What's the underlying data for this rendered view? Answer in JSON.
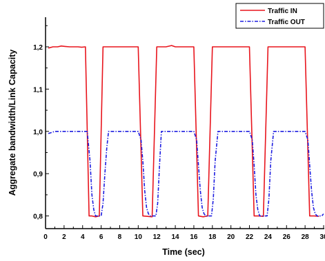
{
  "chart_data": {
    "type": "line",
    "title": "",
    "xlabel": "Time (sec)",
    "ylabel": "Aggregate bandwidth/Link Capacity",
    "xlim": [
      0,
      30
    ],
    "ylim": [
      0.77,
      1.27
    ],
    "xticks": [
      0,
      2,
      4,
      6,
      8,
      10,
      12,
      14,
      16,
      18,
      20,
      22,
      24,
      26,
      28,
      30
    ],
    "xtick_labels": [
      "0",
      "2",
      "4",
      "6",
      "8",
      "10",
      "12",
      "14",
      "16",
      "18",
      "20",
      "22",
      "24",
      "26",
      "28",
      "30"
    ],
    "yticks": [
      0.8,
      0.9,
      1.0,
      1.1,
      1.2
    ],
    "ytick_labels": [
      "0,8",
      "0,9",
      "1,0",
      "1,1",
      "1,2"
    ],
    "grid": false,
    "legend_position": "top-right",
    "series": [
      {
        "name": "Traffic IN",
        "color": "#e8141c",
        "style": "solid",
        "x": [
          0.3,
          0.8,
          1.3,
          1.7,
          2.1,
          2.6,
          3.1,
          3.5,
          3.9,
          4.3,
          4.7,
          5.0,
          5.4,
          5.8,
          6.2,
          7.0,
          8.0,
          9.0,
          10.0,
          10.5,
          11.0,
          11.5,
          12.0,
          12.5,
          13.0,
          13.6,
          14.0,
          15.0,
          16.0,
          16.5,
          17.0,
          17.5,
          18.0,
          19.0,
          20.0,
          21.0,
          22.0,
          22.5,
          23.0,
          23.5,
          24.0,
          25.0,
          26.0,
          27.0,
          28.0,
          28.5,
          29.0,
          29.5
        ],
        "y": [
          1.197,
          1.2,
          1.2,
          1.202,
          1.201,
          1.2,
          1.2,
          1.2,
          1.199,
          1.2,
          0.8,
          0.8,
          0.798,
          0.8,
          1.2,
          1.2,
          1.2,
          1.2,
          1.2,
          0.8,
          0.799,
          0.798,
          1.2,
          1.2,
          1.2,
          1.203,
          1.2,
          1.2,
          1.2,
          0.8,
          0.798,
          0.8,
          1.2,
          1.2,
          1.2,
          1.2,
          1.2,
          0.8,
          0.8,
          0.799,
          1.2,
          1.2,
          1.2,
          1.2,
          1.2,
          0.8,
          0.8,
          0.799
        ]
      },
      {
        "name": "Traffic OUT",
        "color": "#1c1ce0",
        "style": "dash-dot",
        "x": [
          0.3,
          0.6,
          1.0,
          2.0,
          3.0,
          4.0,
          4.5,
          4.8,
          5.0,
          5.2,
          5.4,
          5.6,
          5.8,
          6.0,
          6.2,
          6.4,
          6.6,
          6.8,
          7.0,
          8.0,
          9.0,
          10.0,
          10.3,
          10.5,
          10.7,
          10.9,
          11.1,
          11.3,
          11.5,
          11.7,
          11.9,
          12.1,
          12.3,
          12.5,
          13.0,
          14.0,
          15.0,
          16.0,
          16.3,
          16.5,
          16.7,
          16.9,
          17.1,
          17.3,
          17.5,
          17.7,
          17.9,
          18.1,
          18.3,
          18.6,
          19.0,
          20.0,
          21.0,
          22.0,
          22.3,
          22.5,
          22.7,
          22.9,
          23.1,
          23.3,
          23.5,
          23.7,
          23.9,
          24.1,
          24.3,
          24.6,
          25.0,
          26.0,
          27.0,
          28.0,
          28.3,
          28.5,
          28.7,
          28.9,
          29.1,
          29.3,
          29.5,
          29.8,
          30.0
        ],
        "y": [
          0.995,
          0.997,
          1.0,
          1.0,
          1.0,
          1.0,
          1.0,
          0.93,
          0.85,
          0.815,
          0.8,
          0.8,
          0.8,
          0.8,
          0.83,
          0.9,
          0.96,
          1.0,
          1.0,
          1.0,
          1.0,
          1.0,
          0.98,
          0.93,
          0.86,
          0.82,
          0.805,
          0.8,
          0.8,
          0.8,
          0.8,
          0.83,
          0.92,
          1.0,
          1.0,
          1.0,
          1.0,
          1.0,
          0.98,
          0.92,
          0.86,
          0.82,
          0.805,
          0.8,
          0.8,
          0.8,
          0.8,
          0.84,
          0.93,
          1.0,
          1.0,
          1.0,
          1.0,
          1.0,
          0.98,
          0.92,
          0.85,
          0.815,
          0.8,
          0.8,
          0.8,
          0.8,
          0.8,
          0.84,
          0.93,
          1.0,
          1.0,
          1.0,
          1.0,
          1.0,
          0.98,
          0.92,
          0.86,
          0.82,
          0.805,
          0.8,
          0.8,
          0.8,
          0.805
        ]
      }
    ]
  }
}
